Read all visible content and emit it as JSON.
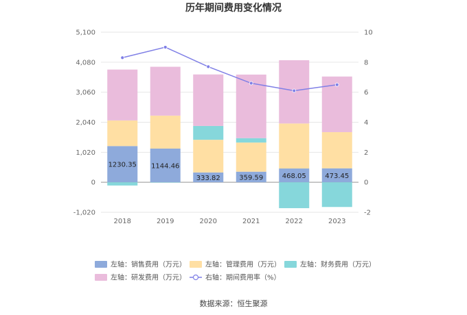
{
  "chart_data": {
    "type": "bar",
    "title": "历年期间费用变化情况",
    "categories": [
      "2018",
      "2019",
      "2020",
      "2021",
      "2022",
      "2023"
    ],
    "series": [
      {
        "name": "左轴：销售费用（万元）",
        "kind": "bar",
        "axis": "left",
        "color": "#8eaadb",
        "values": [
          1230.35,
          1144.46,
          333.82,
          359.59,
          468.05,
          473.45
        ],
        "labels": [
          "1230.35",
          "1144.46",
          "333.82",
          "359.59",
          "468.05",
          "473.45"
        ]
      },
      {
        "name": "左轴：管理费用（万元）",
        "kind": "bar",
        "axis": "left",
        "color": "#ffdfa3",
        "values": [
          870,
          1120,
          1110,
          990,
          1530,
          1230
        ]
      },
      {
        "name": "左轴：财务费用（万元）",
        "kind": "bar",
        "axis": "left",
        "color": "#86d7db",
        "values": [
          -110,
          -10,
          470,
          150,
          -880,
          -840
        ]
      },
      {
        "name": "左轴：研发费用（万元）",
        "kind": "bar",
        "axis": "left",
        "color": "#eabcdc",
        "values": [
          1730,
          1660,
          1750,
          2160,
          2150,
          1890
        ]
      },
      {
        "name": "右轴：期间费用率（%）",
        "kind": "line",
        "axis": "right",
        "color": "#7f7fe6",
        "values": [
          8.3,
          9.0,
          7.7,
          6.6,
          6.1,
          6.5
        ]
      }
    ],
    "left_axis": {
      "min": -1020,
      "max": 5100,
      "ticks": [
        "5,100",
        "4,080",
        "3,060",
        "2,040",
        "1,020",
        "0",
        "-1,020"
      ]
    },
    "right_axis": {
      "min": -2,
      "max": 10,
      "ticks": [
        "10",
        "8",
        "6",
        "4",
        "2",
        "0",
        "-2"
      ]
    },
    "legend_position": "bottom",
    "grid": true
  },
  "source": "数据来源：恒生聚源"
}
